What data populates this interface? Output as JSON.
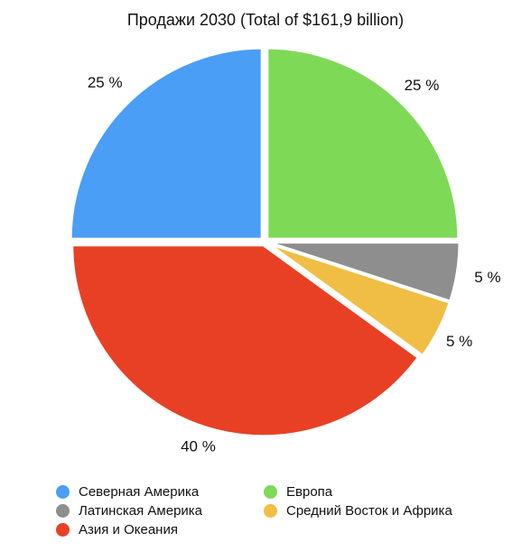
{
  "chart_data": {
    "type": "pie",
    "title": "Продажи 2030 (Total of $161,9 billion)",
    "slices": [
      {
        "name": "Европа",
        "value": 25,
        "label": "25 %",
        "color": "#7ED957"
      },
      {
        "name": "Латинская Америка",
        "value": 5,
        "label": "5 %",
        "color": "#8E8E8E"
      },
      {
        "name": "Средний Восток и Африка",
        "value": 5,
        "label": "5 %",
        "color": "#F0BE44"
      },
      {
        "name": "Азия и Океания",
        "value": 40,
        "label": "40 %",
        "color": "#E84024"
      },
      {
        "name": "Северная Америка",
        "value": 25,
        "label": "25 %",
        "color": "#4A9EF5"
      }
    ],
    "legend": {
      "placement": "bottom",
      "order": [
        "Северная Америка",
        "Европа",
        "Латинская Америка",
        "Средний Восток и Африка",
        "Азия и Океания"
      ]
    }
  }
}
